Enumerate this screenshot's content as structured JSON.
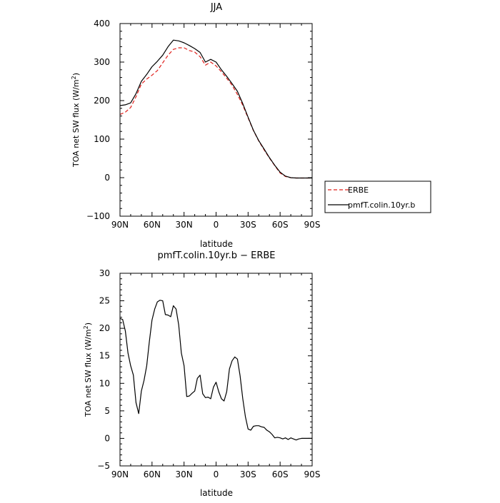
{
  "chart_data": [
    {
      "type": "line",
      "title": "JJA",
      "xlabel": "latitude",
      "ylabel": "TOA net SW flux (W/m",
      "ylabel_sup": "2",
      "ylabel_tail": ")",
      "xlim": [
        90,
        -90
      ],
      "ylim": [
        -100,
        400
      ],
      "x_ticks": [
        90,
        60,
        30,
        0,
        -30,
        -60,
        -90
      ],
      "x_tick_labels": [
        "90N",
        "60N",
        "30N",
        "0",
        "30S",
        "60S",
        "90S"
      ],
      "y_ticks": [
        -100,
        0,
        100,
        200,
        300,
        400
      ],
      "y_tick_labels": [
        "−100",
        "0",
        "100",
        "200",
        "300",
        "400"
      ],
      "legend_position": "outside-right",
      "series": [
        {
          "name": "ERBE",
          "color": "#e0201b",
          "dash": "dashed",
          "x": [
            90,
            85,
            80,
            75,
            70,
            65,
            60,
            55,
            50,
            45,
            40,
            35,
            30,
            25,
            20,
            15,
            10,
            5,
            0,
            -5,
            -10,
            -15,
            -20,
            -25,
            -30,
            -35,
            -40,
            -45,
            -50,
            -55,
            -60,
            -65,
            -70,
            -75,
            -80,
            -85,
            -90
          ],
          "values": [
            164,
            170,
            182,
            210,
            243,
            256,
            266,
            278,
            298,
            318,
            333,
            337,
            337,
            330,
            326,
            314,
            292,
            300,
            290,
            275,
            258,
            240,
            216,
            188,
            155,
            122,
            95,
            72,
            51,
            31,
            12,
            3,
            0,
            -1,
            -1,
            -1,
            -1
          ]
        },
        {
          "name": "pmfT.colin.10yr.b",
          "color": "#000000",
          "dash": "solid",
          "x": [
            90,
            85,
            80,
            75,
            70,
            65,
            60,
            55,
            50,
            45,
            40,
            35,
            30,
            25,
            20,
            15,
            10,
            5,
            0,
            -5,
            -10,
            -15,
            -20,
            -25,
            -30,
            -35,
            -40,
            -45,
            -50,
            -55,
            -60,
            -65,
            -70,
            -75,
            -80,
            -85,
            -90
          ],
          "values": [
            187,
            189,
            194,
            218,
            250,
            268,
            288,
            302,
            318,
            340,
            357,
            355,
            350,
            343,
            335,
            325,
            300,
            307,
            300,
            280,
            263,
            244,
            224,
            192,
            157,
            123,
            96,
            74,
            52,
            32,
            14,
            4,
            0,
            -1,
            -1,
            -1,
            -1
          ]
        }
      ]
    },
    {
      "type": "line",
      "title": "pmfT.colin.10yr.b − ERBE",
      "xlabel": "latitude",
      "ylabel": "TOA net SW flux (W/m",
      "ylabel_sup": "2",
      "ylabel_tail": ")",
      "xlim": [
        90,
        -90
      ],
      "ylim": [
        -5,
        30
      ],
      "x_ticks": [
        90,
        60,
        30,
        0,
        -30,
        -60,
        -90
      ],
      "x_tick_labels": [
        "90N",
        "60N",
        "30N",
        "0",
        "30S",
        "60S",
        "90S"
      ],
      "y_ticks": [
        -5,
        0,
        5,
        10,
        15,
        20,
        25,
        30
      ],
      "y_tick_labels": [
        "−5",
        "0",
        "5",
        "10",
        "15",
        "20",
        "25",
        "30"
      ],
      "series": [
        {
          "color": "#000000",
          "dash": "solid",
          "x": [
            90,
            87.5,
            85,
            82.5,
            80,
            77.5,
            75,
            72.5,
            70,
            67.5,
            65,
            62.5,
            60,
            57.5,
            55,
            52.5,
            50,
            47.5,
            45,
            42.5,
            40,
            37.5,
            35,
            32.5,
            30,
            27.5,
            25,
            22.5,
            20,
            17.5,
            15,
            12.5,
            10,
            7.5,
            5,
            2.5,
            0,
            -2.5,
            -5,
            -7.5,
            -10,
            -12.5,
            -15,
            -17.5,
            -20,
            -22.5,
            -25,
            -27.5,
            -30,
            -32.5,
            -35,
            -37.5,
            -40,
            -42.5,
            -45,
            -47.5,
            -50,
            -52.5,
            -55,
            -57.5,
            -60,
            -62.5,
            -65,
            -67.5,
            -70,
            -72.5,
            -75,
            -77.5,
            -80,
            -82.5,
            -85,
            -87.5,
            -90
          ],
          "values": [
            21.8,
            21.6,
            19.5,
            15.5,
            13.2,
            11.5,
            6.5,
            4.5,
            8.6,
            10.5,
            13.2,
            17.6,
            21.5,
            23.5,
            24.8,
            25.1,
            25.0,
            22.5,
            22.4,
            22.1,
            24.1,
            23.5,
            20.6,
            15.5,
            13.2,
            7.6,
            7.7,
            8.2,
            8.6,
            10.9,
            11.5,
            8.1,
            7.4,
            7.5,
            7.2,
            9.3,
            10.2,
            8.5,
            7.2,
            6.8,
            8.5,
            12.6,
            14.1,
            14.8,
            14.4,
            11.4,
            7.2,
            3.9,
            1.7,
            1.5,
            2.2,
            2.3,
            2.3,
            2.1,
            2.0,
            1.5,
            1.2,
            0.7,
            0.1,
            0.2,
            0.1,
            -0.1,
            0.1,
            -0.2,
            0.1,
            -0.1,
            -0.3,
            -0.1,
            0.0,
            0.0,
            0.0,
            0.0,
            0.0
          ]
        }
      ]
    }
  ]
}
